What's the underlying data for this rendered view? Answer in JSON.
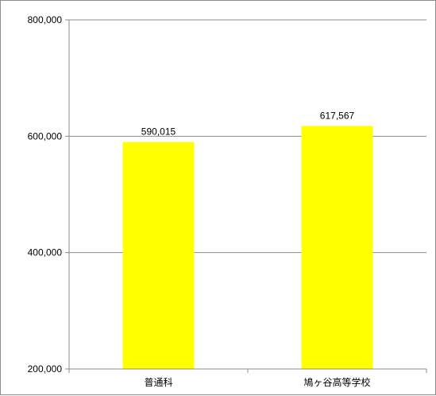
{
  "chart_data": {
    "type": "bar",
    "categories": [
      "普通科",
      "鳩ヶ谷高等学校"
    ],
    "values": [
      590015,
      617567
    ],
    "data_labels": [
      "590,015",
      "617,567"
    ],
    "ylim": [
      200000,
      800000
    ],
    "yticks": [
      200000,
      400000,
      600000,
      800000
    ],
    "ytick_labels": [
      "200,000",
      "400,000",
      "600,000",
      "800,000"
    ],
    "grid": true,
    "legend": "none",
    "title": "",
    "xlabel": "",
    "ylabel": "",
    "colors": {
      "bar": "#ffff00",
      "grid": "#8c8c8c",
      "axis": "#8c8c8c"
    }
  }
}
